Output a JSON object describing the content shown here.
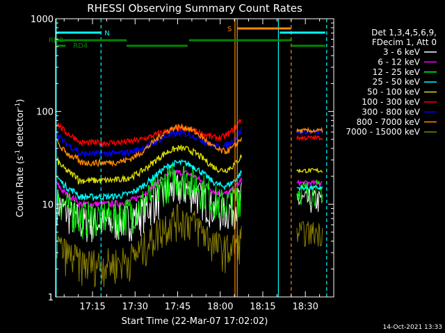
{
  "chart_data": {
    "type": "line",
    "title": "RHESSI Observing Summary Count Rates",
    "xlabel": "Start Time (22-Mar-07 17:02:02)",
    "ylabel_main": "Count Rate (s",
    "ylabel_sup1": "-1",
    "ylabel_mid": " detector",
    "ylabel_sup2": "-1",
    "ylabel_end": ")",
    "y_scale": "log",
    "ylim": [
      1,
      1000
    ],
    "y_ticks": [
      {
        "value": 1,
        "label": "1"
      },
      {
        "value": 10,
        "label": "10"
      },
      {
        "value": 100,
        "label": "100"
      },
      {
        "value": 1000,
        "label": "1000"
      }
    ],
    "x_unit": "minutes of day",
    "xlim": [
      1022,
      1120
    ],
    "x_ticks": [
      {
        "value": 1035,
        "label": "17:15"
      },
      {
        "value": 1050,
        "label": "17:30"
      },
      {
        "value": 1065,
        "label": "17:45"
      },
      {
        "value": 1080,
        "label": "18:00"
      },
      {
        "value": 1095,
        "label": "18:15"
      },
      {
        "value": 1110,
        "label": "18:30"
      }
    ],
    "legend_header": [
      "Det 1,3,4,5,6,9,",
      "FDecim 1, Att 0"
    ],
    "legend_position": "right",
    "series": [
      {
        "name": "3 - 6 keV",
        "color": "#ffffff",
        "base": 6.5,
        "peak": 15,
        "gap_level": 11
      },
      {
        "name": "6 - 12 keV",
        "color": "#ff00ff",
        "base": 10,
        "peak": 22,
        "gap_level": 17
      },
      {
        "name": "12 - 25 keV",
        "color": "#00ff00",
        "base": 7.5,
        "peak": 20,
        "gap_level": 14
      },
      {
        "name": "25 - 50 keV",
        "color": "#00ffff",
        "base": 12,
        "peak": 28,
        "gap_level": 15
      },
      {
        "name": "50 - 100 keV",
        "color": "#dddd00",
        "base": 18,
        "peak": 40,
        "gap_level": 23
      },
      {
        "name": "100 - 300 keV",
        "color": "#ff0000",
        "base": 46,
        "peak": 65,
        "gap_level": 52
      },
      {
        "name": "300 - 800 keV",
        "color": "#0000ff",
        "base": 35,
        "peak": 58,
        "gap_level": 60
      },
      {
        "name": "800 - 7000 keV",
        "color": "#ff8800",
        "base": 28,
        "peak": 68,
        "gap_level": 62
      },
      {
        "name": "7000 - 15000 keV",
        "color": "#8b8000",
        "base": 2.3,
        "peak": 7,
        "gap_level": 5
      }
    ],
    "annotations": {
      "N_label": "N",
      "S_label": "S",
      "RD0_label": "RD0",
      "RD4_label": "RD4"
    },
    "footer_date": "14-Oct-2021 13:33"
  }
}
